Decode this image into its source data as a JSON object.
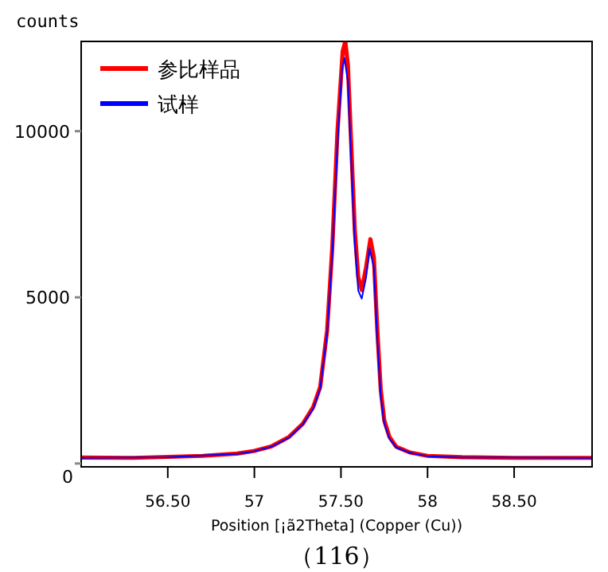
{
  "chart_data": {
    "type": "line",
    "ylabel": "counts",
    "xlabel": "Position [¡ã2Theta] (Copper (Cu))",
    "annotations": [
      "（116）"
    ],
    "xlim": [
      56.0,
      58.95
    ],
    "ylim": [
      -100,
      12700
    ],
    "xticks": [
      {
        "value": 56.5,
        "label": "56.50"
      },
      57,
      {
        "value": 57.5,
        "label": "57.50"
      },
      58,
      {
        "value": 58.5,
        "label": "58.50"
      }
    ],
    "yticks": [
      0,
      5000,
      10000
    ],
    "grid": false,
    "legend": "top left",
    "marker": "none",
    "line_style": "solid",
    "series": [
      {
        "name": "参比样品",
        "color": "#ff0000",
        "x": [
          56.0,
          56.3,
          56.5,
          56.7,
          56.9,
          57.0,
          57.1,
          57.2,
          57.28,
          57.34,
          57.38,
          57.42,
          57.45,
          57.48,
          57.51,
          57.525,
          57.54,
          57.56,
          57.58,
          57.6,
          57.62,
          57.645,
          57.67,
          57.69,
          57.71,
          57.73,
          57.75,
          57.78,
          57.82,
          57.9,
          58.0,
          58.2,
          58.5,
          58.95
        ],
        "values": [
          180,
          170,
          200,
          230,
          300,
          380,
          520,
          800,
          1200,
          1700,
          2300,
          4000,
          6500,
          10000,
          12400,
          12700,
          12000,
          9500,
          7000,
          5600,
          5220,
          5900,
          6750,
          6200,
          4000,
          2200,
          1300,
          800,
          500,
          330,
          230,
          190,
          170,
          170
        ]
      },
      {
        "name": "试样",
        "color": "#0000ff",
        "x": [
          56.0,
          56.3,
          56.5,
          56.7,
          56.9,
          57.0,
          57.1,
          57.2,
          57.28,
          57.34,
          57.38,
          57.42,
          57.45,
          57.48,
          57.505,
          57.52,
          57.54,
          57.56,
          57.58,
          57.6,
          57.62,
          57.645,
          57.665,
          57.69,
          57.71,
          57.73,
          57.75,
          57.78,
          57.82,
          57.9,
          58.0,
          58.2,
          58.5,
          58.95
        ],
        "values": [
          170,
          180,
          190,
          240,
          290,
          370,
          510,
          780,
          1180,
          1650,
          2250,
          3900,
          6300,
          9600,
          11800,
          12200,
          11500,
          9000,
          6600,
          5200,
          4960,
          5600,
          6470,
          5900,
          3700,
          2000,
          1200,
          750,
          480,
          320,
          220,
          180,
          180,
          170
        ]
      }
    ]
  }
}
